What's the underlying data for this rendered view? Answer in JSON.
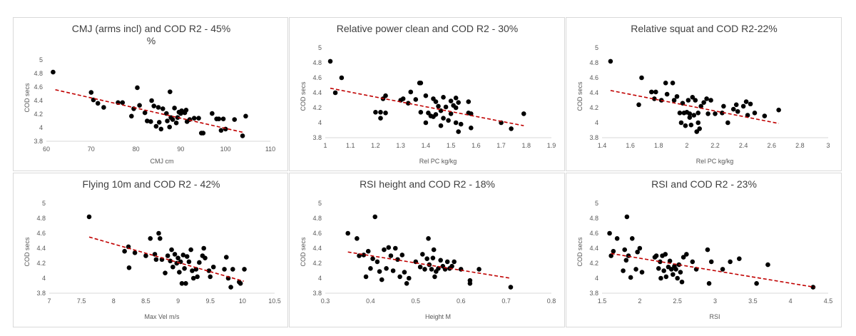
{
  "chart_data": [
    {
      "type": "scatter",
      "title": "CMJ (arms incl) and COD R2 - 45%",
      "title_extra": "%",
      "xlabel": "CMJ cm",
      "ylabel": "COD secs",
      "xlim": [
        60,
        110
      ],
      "ylim": [
        3.8,
        5
      ],
      "xticks": [
        "60",
        "70",
        "80",
        "90",
        "100",
        "110"
      ],
      "yticks": [
        "3.8",
        "4",
        "4.2",
        "4.4",
        "4.6",
        "4.8",
        "5"
      ],
      "trendline": [
        [
          62,
          4.56
        ],
        [
          104,
          3.93
        ]
      ],
      "trend_color": "#c00000",
      "marker_color": "#000000",
      "points": [
        [
          61.5,
          4.82
        ],
        [
          70,
          4.52
        ],
        [
          70.5,
          4.41
        ],
        [
          71.5,
          4.36
        ],
        [
          72.8,
          4.3
        ],
        [
          76,
          4.37
        ],
        [
          77,
          4.37
        ],
        [
          79,
          4.17
        ],
        [
          79.5,
          4.28
        ],
        [
          80.3,
          4.59
        ],
        [
          80.8,
          4.33
        ],
        [
          82,
          4.22
        ],
        [
          82.5,
          4.1
        ],
        [
          83.3,
          4.09
        ],
        [
          83.5,
          4.4
        ],
        [
          84,
          4.32
        ],
        [
          84.5,
          4.02
        ],
        [
          85,
          4.3
        ],
        [
          85.2,
          4.08
        ],
        [
          85.6,
          3.98
        ],
        [
          86,
          4.28
        ],
        [
          86.8,
          4.21
        ],
        [
          87,
          4.1
        ],
        [
          87.5,
          4.01
        ],
        [
          87.6,
          4.53
        ],
        [
          87.8,
          4.15
        ],
        [
          88.2,
          4.12
        ],
        [
          88.6,
          4.29
        ],
        [
          89,
          4.07
        ],
        [
          89.3,
          4.15
        ],
        [
          89.6,
          4.23
        ],
        [
          90,
          4.21
        ],
        [
          90.2,
          4.25
        ],
        [
          90.9,
          4.22
        ],
        [
          91.2,
          4.26
        ],
        [
          91.4,
          4.09
        ],
        [
          92,
          4.12
        ],
        [
          93,
          4.14
        ],
        [
          94,
          4.14
        ],
        [
          94.6,
          3.92
        ],
        [
          95,
          3.92
        ],
        [
          97,
          4.21
        ],
        [
          98,
          4.13
        ],
        [
          98.5,
          4.13
        ],
        [
          99,
          3.96
        ],
        [
          99.5,
          4.13
        ],
        [
          100,
          3.98
        ],
        [
          102,
          4.12
        ],
        [
          103.8,
          3.88
        ],
        [
          104.5,
          4.17
        ]
      ]
    },
    {
      "type": "scatter",
      "title": "Relative power clean and COD R2 - 30%",
      "xlabel": "Rel PC kg/kg",
      "ylabel": "COD secs",
      "xlim": [
        1,
        1.9
      ],
      "ylim": [
        3.8,
        5
      ],
      "xticks": [
        "1",
        "1.1",
        "1.2",
        "1.3",
        "1.4",
        "1.5",
        "1.6",
        "1.7",
        "1.8",
        "1.9"
      ],
      "yticks": [
        "3.8",
        "4",
        "4.2",
        "4.4",
        "4.6",
        "4.8",
        "5"
      ],
      "trendline": [
        [
          1.02,
          4.46
        ],
        [
          1.79,
          3.96
        ]
      ],
      "trend_color": "#c00000",
      "marker_color": "#000000",
      "points": [
        [
          1.02,
          4.82
        ],
        [
          1.04,
          4.4
        ],
        [
          1.065,
          4.6
        ],
        [
          1.2,
          4.14
        ],
        [
          1.22,
          4.06
        ],
        [
          1.22,
          4.14
        ],
        [
          1.23,
          4.32
        ],
        [
          1.24,
          4.13
        ],
        [
          1.24,
          4.36
        ],
        [
          1.3,
          4.3
        ],
        [
          1.31,
          4.32
        ],
        [
          1.33,
          4.26
        ],
        [
          1.34,
          4.41
        ],
        [
          1.36,
          4.31
        ],
        [
          1.375,
          4.53
        ],
        [
          1.38,
          4.53
        ],
        [
          1.38,
          4.14
        ],
        [
          1.4,
          4.36
        ],
        [
          1.4,
          4.0
        ],
        [
          1.41,
          4.13
        ],
        [
          1.42,
          4.09
        ],
        [
          1.43,
          4.08
        ],
        [
          1.43,
          4.32
        ],
        [
          1.44,
          4.28
        ],
        [
          1.44,
          4.11
        ],
        [
          1.45,
          4.22
        ],
        [
          1.46,
          4.16
        ],
        [
          1.46,
          3.96
        ],
        [
          1.47,
          4.06
        ],
        [
          1.47,
          4.34
        ],
        [
          1.48,
          4.21
        ],
        [
          1.49,
          4.03
        ],
        [
          1.5,
          4.29
        ],
        [
          1.5,
          4.12
        ],
        [
          1.51,
          4.23
        ],
        [
          1.52,
          4.2
        ],
        [
          1.52,
          4.33
        ],
        [
          1.52,
          4.0
        ],
        [
          1.53,
          3.88
        ],
        [
          1.53,
          4.27
        ],
        [
          1.54,
          3.98
        ],
        [
          1.57,
          4.13
        ],
        [
          1.57,
          4.28
        ],
        [
          1.58,
          3.93
        ],
        [
          1.58,
          4.12
        ],
        [
          1.7,
          4.0
        ],
        [
          1.74,
          3.92
        ],
        [
          1.79,
          4.12
        ]
      ]
    },
    {
      "type": "scatter",
      "title": "Relative squat and COD R2-22%",
      "xlabel": "Rel PC kg/kg",
      "ylabel": "COD secs",
      "xlim": [
        1.4,
        3
      ],
      "ylim": [
        3.8,
        5
      ],
      "xticks": [
        "1.4",
        "1.6",
        "1.8",
        "2",
        "2.2",
        "2.4",
        "2.6",
        "2.8",
        "3"
      ],
      "yticks": [
        "3.8",
        "4",
        "4.2",
        "4.4",
        "4.6",
        "4.8",
        "5"
      ],
      "trendline": [
        [
          1.46,
          4.43
        ],
        [
          2.65,
          3.99
        ]
      ],
      "trend_color": "#c00000",
      "marker_color": "#000000",
      "points": [
        [
          1.46,
          4.82
        ],
        [
          1.66,
          4.24
        ],
        [
          1.68,
          4.6
        ],
        [
          1.75,
          4.41
        ],
        [
          1.77,
          4.32
        ],
        [
          1.78,
          4.41
        ],
        [
          1.82,
          4.3
        ],
        [
          1.85,
          4.53
        ],
        [
          1.86,
          4.38
        ],
        [
          1.9,
          4.53
        ],
        [
          1.91,
          4.3
        ],
        [
          1.93,
          4.35
        ],
        [
          1.95,
          4.13
        ],
        [
          1.96,
          4.0
        ],
        [
          1.97,
          4.26
        ],
        [
          1.98,
          4.13
        ],
        [
          1.99,
          3.96
        ],
        [
          2.0,
          4.14
        ],
        [
          2.01,
          4.3
        ],
        [
          2.02,
          4.07
        ],
        [
          2.02,
          4.12
        ],
        [
          2.03,
          3.97
        ],
        [
          2.04,
          4.34
        ],
        [
          2.05,
          4.1
        ],
        [
          2.06,
          4.3
        ],
        [
          2.07,
          3.88
        ],
        [
          2.08,
          4.0
        ],
        [
          2.08,
          4.13
        ],
        [
          2.09,
          3.92
        ],
        [
          2.1,
          4.22
        ],
        [
          2.12,
          4.27
        ],
        [
          2.14,
          4.32
        ],
        [
          2.15,
          4.12
        ],
        [
          2.17,
          4.3
        ],
        [
          2.2,
          4.12
        ],
        [
          2.25,
          4.13
        ],
        [
          2.26,
          4.22
        ],
        [
          2.29,
          4.0
        ],
        [
          2.33,
          4.18
        ],
        [
          2.35,
          4.24
        ],
        [
          2.36,
          4.15
        ],
        [
          2.4,
          4.22
        ],
        [
          2.42,
          4.28
        ],
        [
          2.43,
          4.1
        ],
        [
          2.45,
          4.25
        ],
        [
          2.48,
          4.13
        ],
        [
          2.55,
          4.09
        ],
        [
          2.65,
          4.17
        ]
      ]
    },
    {
      "type": "scatter",
      "title": "Flying 10m and COD R2 - 42%",
      "xlabel": "Max Vel m/s",
      "ylabel": "COD secs",
      "xlim": [
        7,
        10.5
      ],
      "ylim": [
        3.8,
        5
      ],
      "xticks": [
        "7",
        "7.5",
        "8",
        "8.5",
        "9",
        "9.5",
        "10",
        "10.5"
      ],
      "yticks": [
        "3.8",
        "4",
        "4.2",
        "4.4",
        "4.6",
        "4.8",
        "5"
      ],
      "trendline": [
        [
          7.62,
          4.55
        ],
        [
          10.02,
          3.96
        ]
      ],
      "trend_color": "#c00000",
      "marker_color": "#000000",
      "points": [
        [
          7.62,
          4.82
        ],
        [
          8.17,
          4.36
        ],
        [
          8.23,
          4.42
        ],
        [
          8.24,
          4.14
        ],
        [
          8.33,
          4.34
        ],
        [
          8.5,
          4.3
        ],
        [
          8.57,
          4.53
        ],
        [
          8.64,
          4.32
        ],
        [
          8.66,
          4.25
        ],
        [
          8.7,
          4.6
        ],
        [
          8.72,
          4.53
        ],
        [
          8.75,
          4.25
        ],
        [
          8.8,
          4.07
        ],
        [
          8.84,
          4.3
        ],
        [
          8.88,
          4.23
        ],
        [
          8.9,
          4.38
        ],
        [
          8.92,
          4.15
        ],
        [
          8.95,
          4.32
        ],
        [
          8.98,
          4.2
        ],
        [
          9.0,
          4.27
        ],
        [
          9.02,
          4.08
        ],
        [
          9.04,
          4.22
        ],
        [
          9.06,
          3.93
        ],
        [
          9.08,
          4.31
        ],
        [
          9.1,
          4.13
        ],
        [
          9.12,
          3.93
        ],
        [
          9.14,
          4.29
        ],
        [
          9.17,
          4.22
        ],
        [
          9.2,
          4.38
        ],
        [
          9.22,
          4.1
        ],
        [
          9.24,
          4.0
        ],
        [
          9.28,
          4.12
        ],
        [
          9.3,
          4.02
        ],
        [
          9.33,
          4.21
        ],
        [
          9.38,
          4.3
        ],
        [
          9.4,
          4.4
        ],
        [
          9.42,
          4.27
        ],
        [
          9.48,
          4.1
        ],
        [
          9.5,
          4.02
        ],
        [
          9.55,
          4.15
        ],
        [
          9.72,
          4.12
        ],
        [
          9.75,
          4.28
        ],
        [
          9.78,
          4.0
        ],
        [
          9.82,
          3.88
        ],
        [
          9.85,
          4.12
        ],
        [
          9.95,
          3.95
        ],
        [
          9.97,
          3.93
        ],
        [
          10.03,
          4.12
        ]
      ]
    },
    {
      "type": "scatter",
      "title": "RSI height and COD R2 - 18%",
      "xlabel": "Height M",
      "ylabel": "COD secs",
      "xlim": [
        0.3,
        0.8
      ],
      "ylim": [
        3.8,
        5
      ],
      "xticks": [
        "0.3",
        "0.4",
        "0.5",
        "0.6",
        "0.7",
        "0.8"
      ],
      "yticks": [
        "3.8",
        "4",
        "4.2",
        "4.4",
        "4.6",
        "4.8",
        "5"
      ],
      "trendline": [
        [
          0.35,
          4.35
        ],
        [
          0.71,
          4.0
        ]
      ],
      "trend_color": "#c00000",
      "marker_color": "#000000",
      "points": [
        [
          0.35,
          4.6
        ],
        [
          0.37,
          4.53
        ],
        [
          0.375,
          4.3
        ],
        [
          0.385,
          4.31
        ],
        [
          0.39,
          4.02
        ],
        [
          0.395,
          4.36
        ],
        [
          0.4,
          4.13
        ],
        [
          0.405,
          4.26
        ],
        [
          0.41,
          4.82
        ],
        [
          0.415,
          4.22
        ],
        [
          0.42,
          4.09
        ],
        [
          0.425,
          3.98
        ],
        [
          0.43,
          4.38
        ],
        [
          0.435,
          4.13
        ],
        [
          0.44,
          4.41
        ],
        [
          0.445,
          4.3
        ],
        [
          0.45,
          4.1
        ],
        [
          0.455,
          4.4
        ],
        [
          0.46,
          4.25
        ],
        [
          0.465,
          4.02
        ],
        [
          0.47,
          4.31
        ],
        [
          0.475,
          4.08
        ],
        [
          0.48,
          3.93
        ],
        [
          0.485,
          4.0
        ],
        [
          0.5,
          4.22
        ],
        [
          0.51,
          4.15
        ],
        [
          0.515,
          4.32
        ],
        [
          0.52,
          4.12
        ],
        [
          0.525,
          4.26
        ],
        [
          0.528,
          4.53
        ],
        [
          0.53,
          4.18
        ],
        [
          0.535,
          4.12
        ],
        [
          0.538,
          4.27
        ],
        [
          0.54,
          4.38
        ],
        [
          0.542,
          4.02
        ],
        [
          0.545,
          4.09
        ],
        [
          0.55,
          4.13
        ],
        [
          0.555,
          4.24
        ],
        [
          0.56,
          4.16
        ],
        [
          0.565,
          4.12
        ],
        [
          0.57,
          4.22
        ],
        [
          0.575,
          4.13
        ],
        [
          0.58,
          4.16
        ],
        [
          0.585,
          4.22
        ],
        [
          0.6,
          4.12
        ],
        [
          0.62,
          3.97
        ],
        [
          0.62,
          3.93
        ],
        [
          0.64,
          4.12
        ],
        [
          0.71,
          3.88
        ]
      ]
    },
    {
      "type": "scatter",
      "title": "RSI and COD R2 - 23%",
      "xlabel": "RSI",
      "ylabel": "COD secs",
      "xlim": [
        1.5,
        4.5
      ],
      "ylim": [
        3.8,
        5
      ],
      "xticks": [
        "1.5",
        "2",
        "2.5",
        "3",
        "3.5",
        "4",
        "4.5"
      ],
      "yticks": [
        "3.8",
        "4",
        "4.2",
        "4.4",
        "4.6",
        "4.8",
        "5"
      ],
      "trendline": [
        [
          1.62,
          4.33
        ],
        [
          4.32,
          3.88
        ]
      ],
      "trend_color": "#c00000",
      "marker_color": "#000000",
      "points": [
        [
          1.6,
          4.6
        ],
        [
          1.62,
          4.3
        ],
        [
          1.65,
          4.36
        ],
        [
          1.7,
          4.53
        ],
        [
          1.78,
          4.1
        ],
        [
          1.8,
          4.38
        ],
        [
          1.82,
          4.24
        ],
        [
          1.83,
          4.82
        ],
        [
          1.85,
          4.3
        ],
        [
          1.88,
          4.01
        ],
        [
          1.9,
          4.53
        ],
        [
          1.95,
          4.12
        ],
        [
          1.97,
          4.35
        ],
        [
          2.0,
          4.4
        ],
        [
          2.03,
          4.08
        ],
        [
          2.2,
          4.28
        ],
        [
          2.22,
          4.3
        ],
        [
          2.25,
          4.13
        ],
        [
          2.27,
          4.22
        ],
        [
          2.28,
          4.0
        ],
        [
          2.3,
          4.3
        ],
        [
          2.32,
          4.1
        ],
        [
          2.34,
          4.32
        ],
        [
          2.35,
          4.02
        ],
        [
          2.38,
          4.15
        ],
        [
          2.4,
          4.23
        ],
        [
          2.42,
          4.12
        ],
        [
          2.44,
          4.05
        ],
        [
          2.46,
          4.16
        ],
        [
          2.48,
          4.12
        ],
        [
          2.5,
          4.0
        ],
        [
          2.52,
          4.18
        ],
        [
          2.54,
          4.08
        ],
        [
          2.56,
          3.95
        ],
        [
          2.58,
          4.28
        ],
        [
          2.62,
          4.32
        ],
        [
          2.7,
          4.22
        ],
        [
          2.75,
          4.12
        ],
        [
          2.9,
          4.38
        ],
        [
          2.92,
          3.93
        ],
        [
          2.95,
          4.22
        ],
        [
          3.1,
          4.12
        ],
        [
          3.2,
          4.22
        ],
        [
          3.32,
          4.26
        ],
        [
          3.55,
          3.93
        ],
        [
          3.7,
          4.18
        ],
        [
          4.3,
          3.88
        ]
      ]
    }
  ]
}
